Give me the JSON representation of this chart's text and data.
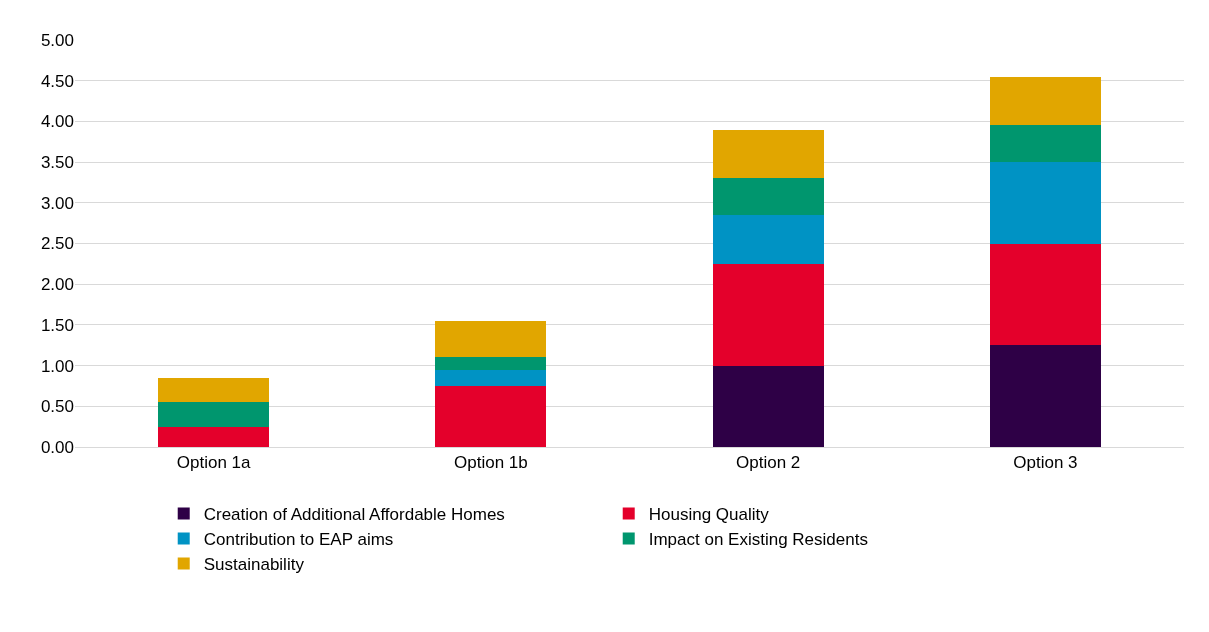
{
  "chart_data": {
    "type": "bar",
    "stacked": true,
    "categories": [
      "Option 1a",
      "Option 1b",
      "Option 2",
      "Option 3"
    ],
    "series": [
      {
        "name": "Creation of Additional Affordable Homes",
        "color": "#2e0046",
        "values": [
          0,
          0,
          1.0,
          1.25
        ]
      },
      {
        "name": "Housing Quality",
        "color": "#e4002b",
        "values": [
          0.25,
          0.75,
          1.25,
          1.25
        ]
      },
      {
        "name": "Contribution to EAP aims",
        "color": "#0093c4",
        "values": [
          0,
          0.2,
          0.6,
          1.0
        ]
      },
      {
        "name": "Impact on Existing Residents",
        "color": "#00966e",
        "values": [
          0.3,
          0.15,
          0.45,
          0.45
        ]
      },
      {
        "name": "Sustainability",
        "color": "#e1a600",
        "values": [
          0.3,
          0.45,
          0.6,
          0.6
        ]
      }
    ],
    "ylim": [
      0,
      5
    ],
    "yticks": [
      {
        "value": 0,
        "label": "0.00"
      },
      {
        "value": 0.5,
        "label": "0.50"
      },
      {
        "value": 1,
        "label": "1.00"
      },
      {
        "value": 1.5,
        "label": "1.50"
      },
      {
        "value": 2,
        "label": "2.00"
      },
      {
        "value": 2.5,
        "label": "2.50"
      },
      {
        "value": 3,
        "label": "3.00"
      },
      {
        "value": 3.5,
        "label": "3.50"
      },
      {
        "value": 4,
        "label": "4.00"
      },
      {
        "value": 4.5,
        "label": "4.50"
      },
      {
        "value": 5,
        "label": "5.00"
      }
    ],
    "grid": "y",
    "legend": "bottom"
  }
}
